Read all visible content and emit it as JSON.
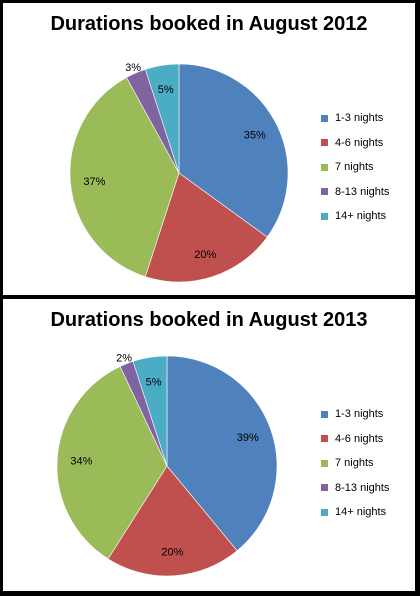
{
  "chart_data": [
    {
      "type": "pie",
      "title": "Durations booked in August 2012",
      "categories": [
        "1-3 nights",
        "4-6 nights",
        "7 nights",
        "8-13 nights",
        "14+ nights"
      ],
      "values": [
        35,
        20,
        37,
        3,
        5
      ],
      "data_labels": [
        "35%",
        "20%",
        "37%",
        "3%",
        "5%"
      ],
      "legend_position": "right"
    },
    {
      "type": "pie",
      "title": "Durations booked in August 2013",
      "categories": [
        "1-3 nights",
        "4-6 nights",
        "7 nights",
        "8-13 nights",
        "14+ nights"
      ],
      "values": [
        39,
        20,
        34,
        2,
        5
      ],
      "data_labels": [
        "39%",
        "20%",
        "34%",
        "2%",
        "5%"
      ],
      "legend_position": "right"
    }
  ],
  "colors": [
    "#4f81bd",
    "#c0504d",
    "#9bbb59",
    "#8064a2",
    "#4bacc6"
  ]
}
